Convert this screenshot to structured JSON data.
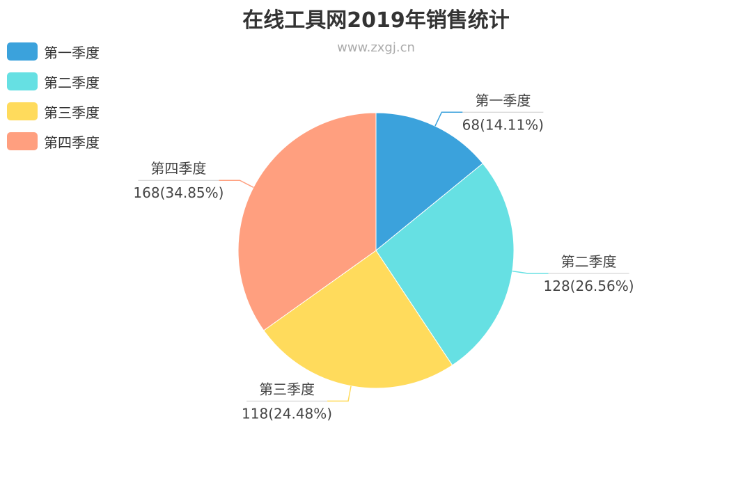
{
  "chart_data": {
    "type": "pie",
    "title": "在线工具网2019年销售统计",
    "subtitle": "www.zxgj.cn",
    "legend_position": "top-left",
    "slices": [
      {
        "name": "第一季度",
        "value": 68,
        "percent_label": "68(14.11%)",
        "color": "#3ba2dc"
      },
      {
        "name": "第二季度",
        "value": 128,
        "percent_label": "128(26.56%)",
        "color": "#66e0e3"
      },
      {
        "name": "第三季度",
        "value": 118,
        "percent_label": "118(24.48%)",
        "color": "#ffdb5c"
      },
      {
        "name": "第四季度",
        "value": 168,
        "percent_label": "168(34.85%)",
        "color": "#ff9f7f"
      }
    ]
  }
}
